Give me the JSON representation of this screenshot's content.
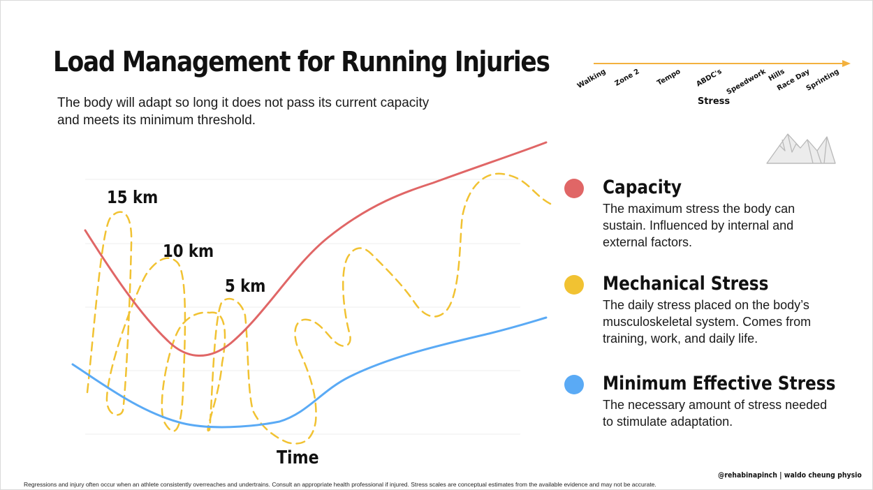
{
  "title": "Load Management for Running Injuries",
  "subtitle": "The body will adapt so long it does not pass its current capacity and meets its minimum threshold.",
  "stress_scale": {
    "axis_label": "Stress",
    "items": [
      "Walking",
      "Zone 2",
      "Tempo",
      "ABDC's",
      "Speedwork",
      "Hills",
      "Race Day",
      "Sprinting"
    ],
    "color": "#f3b13e"
  },
  "chart": {
    "x_label": "Time",
    "annotations": [
      "15 km",
      "10 km",
      "5 km"
    ]
  },
  "legend": [
    {
      "title": "Capacity",
      "description": "The maximum stress the body can sustain. Influenced by internal and external factors.",
      "color": "#e06666"
    },
    {
      "title": "Mechanical Stress",
      "description": "The daily stress placed on the body’s musculoskeletal system. Comes from training, work, and daily life.",
      "color": "#f1c232"
    },
    {
      "title": "Minimum Effective Stress",
      "description": "The necessary amount of stress needed to stimulate adaptation.",
      "color": "#5aaaf5"
    }
  ],
  "footer_note": "Regressions and injury often occur when an athlete consistently overreaches and undertrains. Consult an appropriate health professional if injured. Stress scales are conceptual estimates from the available evidence and may not be accurate.",
  "credit": "@rehabinapinch | waldo cheung physio"
}
